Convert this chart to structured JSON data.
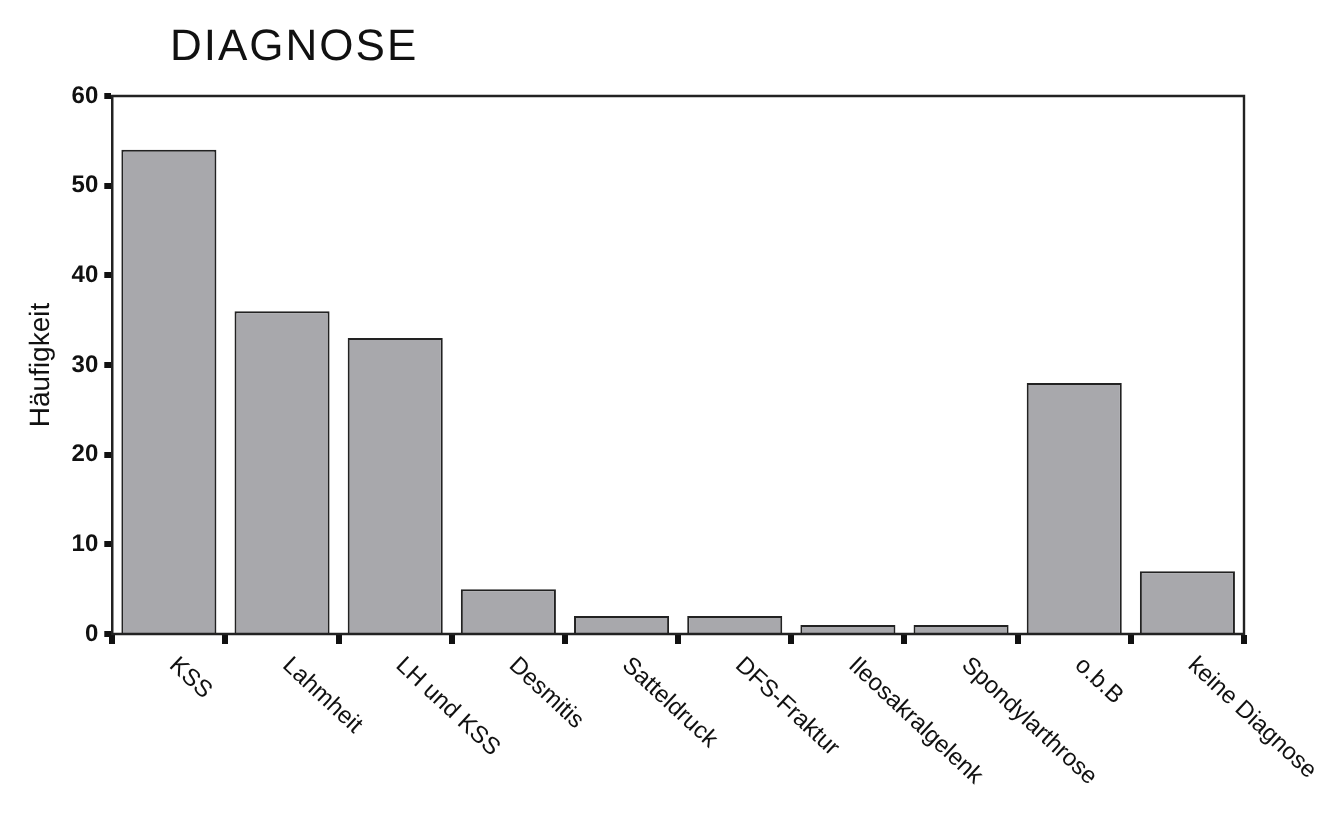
{
  "chart_data": {
    "type": "bar",
    "title": "DIAGNOSE",
    "ylabel": "Häufigkeit",
    "categories": [
      "KSS",
      "Lahmheit",
      "LH und KSS",
      "Desmitis",
      "Satteldruck",
      "DFS-Fraktur",
      "Ileosakralgelenk",
      "Spondylarthrose",
      "o.b.B",
      "keine Diagnose"
    ],
    "values": [
      54,
      36,
      33,
      5,
      2,
      2,
      1,
      1,
      28,
      7
    ],
    "color": "#a8a8ac",
    "ylim": [
      0,
      60
    ],
    "yticks": [
      0,
      10,
      20,
      30,
      40,
      50,
      60
    ],
    "grid": false,
    "legend": false
  }
}
